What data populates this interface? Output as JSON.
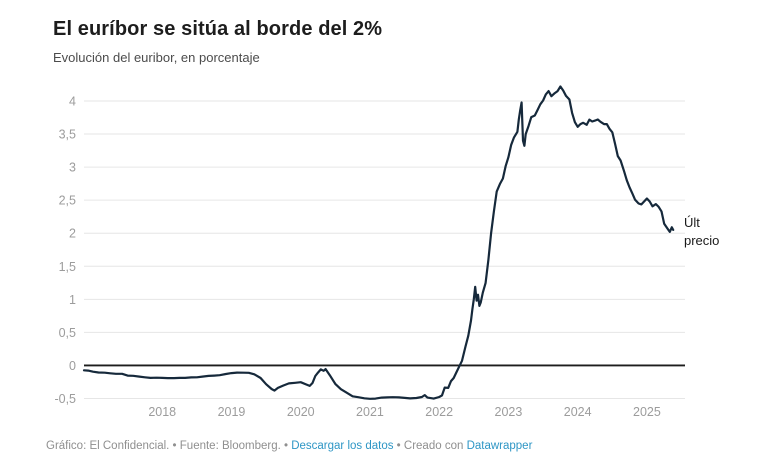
{
  "header": {
    "title": "El euríbor se sitúa al borde del 2%",
    "subtitle": "Evolución del euribor, en porcentaje"
  },
  "chart_data": {
    "type": "line",
    "title": "El euríbor se sitúa al borde del 2%",
    "subtitle": "Evolución del euribor, en porcentaje",
    "xlabel": "",
    "ylabel": "",
    "xlim": [
      2016.87,
      2025.55
    ],
    "ylim": [
      -0.5,
      4.0
    ],
    "grid": "horizontal",
    "zero_line": true,
    "legend": "none",
    "annotation": {
      "text": "Últ\nprecio",
      "x": 2025.42,
      "y": 2.05
    },
    "yticks": [
      {
        "value": 4,
        "label": "4"
      },
      {
        "value": 3.5,
        "label": "3,5"
      },
      {
        "value": 3,
        "label": "3"
      },
      {
        "value": 2.5,
        "label": "2,5"
      },
      {
        "value": 2,
        "label": "2"
      },
      {
        "value": 1.5,
        "label": "1,5"
      },
      {
        "value": 1,
        "label": "1"
      },
      {
        "value": 0.5,
        "label": "0,5"
      },
      {
        "value": 0,
        "label": "0"
      },
      {
        "value": -0.5,
        "label": "-0,5"
      }
    ],
    "xticks": [
      {
        "value": 2018,
        "label": "2018"
      },
      {
        "value": 2019,
        "label": "2019"
      },
      {
        "value": 2020,
        "label": "2020"
      },
      {
        "value": 2021,
        "label": "2021"
      },
      {
        "value": 2022,
        "label": "2022"
      },
      {
        "value": 2023,
        "label": "2023"
      },
      {
        "value": 2024,
        "label": "2024"
      },
      {
        "value": 2025,
        "label": "2025"
      }
    ],
    "series": [
      {
        "name": "Euribor (%)",
        "color": "#16293b",
        "points": [
          [
            2016.87,
            -0.074
          ],
          [
            2016.93,
            -0.078
          ],
          [
            2017.0,
            -0.095
          ],
          [
            2017.08,
            -0.106
          ],
          [
            2017.17,
            -0.11
          ],
          [
            2017.25,
            -0.119
          ],
          [
            2017.33,
            -0.127
          ],
          [
            2017.42,
            -0.127
          ],
          [
            2017.5,
            -0.154
          ],
          [
            2017.58,
            -0.156
          ],
          [
            2017.67,
            -0.168
          ],
          [
            2017.75,
            -0.18
          ],
          [
            2017.83,
            -0.189
          ],
          [
            2017.92,
            -0.186
          ],
          [
            2018.0,
            -0.189
          ],
          [
            2018.08,
            -0.191
          ],
          [
            2018.17,
            -0.191
          ],
          [
            2018.25,
            -0.189
          ],
          [
            2018.33,
            -0.188
          ],
          [
            2018.42,
            -0.181
          ],
          [
            2018.5,
            -0.18
          ],
          [
            2018.58,
            -0.169
          ],
          [
            2018.67,
            -0.158
          ],
          [
            2018.75,
            -0.154
          ],
          [
            2018.83,
            -0.147
          ],
          [
            2018.92,
            -0.129
          ],
          [
            2019.0,
            -0.116
          ],
          [
            2019.08,
            -0.108
          ],
          [
            2019.17,
            -0.109
          ],
          [
            2019.25,
            -0.112
          ],
          [
            2019.33,
            -0.134
          ],
          [
            2019.42,
            -0.19
          ],
          [
            2019.5,
            -0.283
          ],
          [
            2019.58,
            -0.356
          ],
          [
            2019.62,
            -0.38
          ],
          [
            2019.67,
            -0.339
          ],
          [
            2019.75,
            -0.304
          ],
          [
            2019.83,
            -0.272
          ],
          [
            2019.92,
            -0.263
          ],
          [
            2020.0,
            -0.253
          ],
          [
            2020.08,
            -0.288
          ],
          [
            2020.13,
            -0.31
          ],
          [
            2020.17,
            -0.266
          ],
          [
            2020.21,
            -0.16
          ],
          [
            2020.25,
            -0.108
          ],
          [
            2020.29,
            -0.06
          ],
          [
            2020.33,
            -0.081
          ],
          [
            2020.36,
            -0.055
          ],
          [
            2020.42,
            -0.147
          ],
          [
            2020.5,
            -0.279
          ],
          [
            2020.58,
            -0.359
          ],
          [
            2020.67,
            -0.415
          ],
          [
            2020.75,
            -0.466
          ],
          [
            2020.83,
            -0.481
          ],
          [
            2020.92,
            -0.497
          ],
          [
            2021.0,
            -0.505
          ],
          [
            2021.08,
            -0.501
          ],
          [
            2021.17,
            -0.487
          ],
          [
            2021.25,
            -0.484
          ],
          [
            2021.33,
            -0.481
          ],
          [
            2021.42,
            -0.484
          ],
          [
            2021.5,
            -0.491
          ],
          [
            2021.58,
            -0.498
          ],
          [
            2021.67,
            -0.492
          ],
          [
            2021.75,
            -0.477
          ],
          [
            2021.79,
            -0.448
          ],
          [
            2021.83,
            -0.487
          ],
          [
            2021.92,
            -0.502
          ],
          [
            2022.0,
            -0.477
          ],
          [
            2022.04,
            -0.453
          ],
          [
            2022.08,
            -0.335
          ],
          [
            2022.13,
            -0.34
          ],
          [
            2022.17,
            -0.237
          ],
          [
            2022.21,
            -0.19
          ],
          [
            2022.25,
            -0.1
          ],
          [
            2022.29,
            -0.013
          ],
          [
            2022.33,
            0.07
          ],
          [
            2022.38,
            0.287
          ],
          [
            2022.42,
            0.45
          ],
          [
            2022.46,
            0.68
          ],
          [
            2022.48,
            0.852
          ],
          [
            2022.5,
            1.0
          ],
          [
            2022.52,
            1.19
          ],
          [
            2022.54,
            0.98
          ],
          [
            2022.56,
            1.07
          ],
          [
            2022.58,
            0.9
          ],
          [
            2022.6,
            0.95
          ],
          [
            2022.63,
            1.1
          ],
          [
            2022.67,
            1.249
          ],
          [
            2022.71,
            1.6
          ],
          [
            2022.75,
            2.0
          ],
          [
            2022.79,
            2.33
          ],
          [
            2022.83,
            2.629
          ],
          [
            2022.88,
            2.75
          ],
          [
            2022.92,
            2.828
          ],
          [
            2022.96,
            3.018
          ],
          [
            2023.0,
            3.15
          ],
          [
            2023.04,
            3.337
          ],
          [
            2023.08,
            3.45
          ],
          [
            2023.13,
            3.534
          ],
          [
            2023.15,
            3.72
          ],
          [
            2023.17,
            3.86
          ],
          [
            2023.19,
            3.978
          ],
          [
            2023.21,
            3.4
          ],
          [
            2023.23,
            3.322
          ],
          [
            2023.25,
            3.5
          ],
          [
            2023.29,
            3.62
          ],
          [
            2023.33,
            3.757
          ],
          [
            2023.38,
            3.78
          ],
          [
            2023.42,
            3.862
          ],
          [
            2023.46,
            3.95
          ],
          [
            2023.5,
            4.007
          ],
          [
            2023.54,
            4.1
          ],
          [
            2023.58,
            4.149
          ],
          [
            2023.62,
            4.073
          ],
          [
            2023.67,
            4.12
          ],
          [
            2023.71,
            4.149
          ],
          [
            2023.75,
            4.22
          ],
          [
            2023.79,
            4.16
          ],
          [
            2023.83,
            4.08
          ],
          [
            2023.88,
            4.022
          ],
          [
            2023.92,
            3.82
          ],
          [
            2023.96,
            3.679
          ],
          [
            2024.0,
            3.609
          ],
          [
            2024.04,
            3.65
          ],
          [
            2024.08,
            3.671
          ],
          [
            2024.13,
            3.64
          ],
          [
            2024.17,
            3.718
          ],
          [
            2024.21,
            3.69
          ],
          [
            2024.25,
            3.703
          ],
          [
            2024.29,
            3.72
          ],
          [
            2024.33,
            3.686
          ],
          [
            2024.38,
            3.65
          ],
          [
            2024.42,
            3.65
          ],
          [
            2024.46,
            3.58
          ],
          [
            2024.5,
            3.526
          ],
          [
            2024.54,
            3.35
          ],
          [
            2024.58,
            3.166
          ],
          [
            2024.62,
            3.1
          ],
          [
            2024.67,
            2.936
          ],
          [
            2024.71,
            2.8
          ],
          [
            2024.75,
            2.691
          ],
          [
            2024.79,
            2.6
          ],
          [
            2024.83,
            2.506
          ],
          [
            2024.88,
            2.45
          ],
          [
            2024.92,
            2.436
          ],
          [
            2024.96,
            2.48
          ],
          [
            2025.0,
            2.525
          ],
          [
            2025.04,
            2.48
          ],
          [
            2025.08,
            2.407
          ],
          [
            2025.13,
            2.44
          ],
          [
            2025.17,
            2.398
          ],
          [
            2025.21,
            2.33
          ],
          [
            2025.25,
            2.143
          ],
          [
            2025.29,
            2.08
          ],
          [
            2025.33,
            2.02
          ],
          [
            2025.36,
            2.09
          ],
          [
            2025.38,
            2.05
          ]
        ]
      }
    ]
  },
  "footer": {
    "credit": "Gráfico: El Confidencial. • Fuente: Bloomberg. • ",
    "download_link": "Descargar los datos",
    "separator": " • ",
    "created_with": "Creado con ",
    "datawrapper_link": "Datawrapper"
  },
  "colors": {
    "line": "#16293b",
    "zero_line": "#1d1d1d",
    "grid": "#e6e6e6",
    "axis_text": "#9c9c9c",
    "title": "#1d1d1d",
    "subtitle": "#4c4c4c",
    "footer_text": "#8f8f8f",
    "link": "#2e96c5",
    "annotation": "#1a1a1a"
  }
}
